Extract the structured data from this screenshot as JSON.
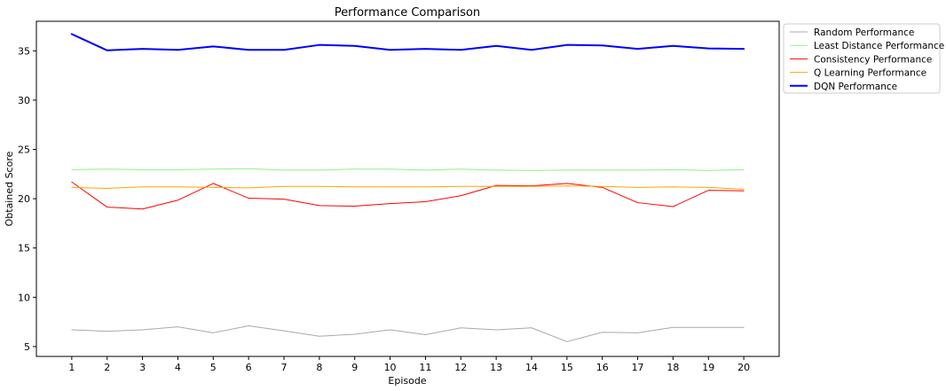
{
  "chart_data": {
    "type": "line",
    "title": "Performance Comparison",
    "xlabel": "Episode",
    "ylabel": "Obtained Score",
    "x": [
      1,
      2,
      3,
      4,
      5,
      6,
      7,
      8,
      9,
      10,
      11,
      12,
      13,
      14,
      15,
      16,
      17,
      18,
      19,
      20
    ],
    "xlim": [
      0,
      21
    ],
    "ylim": [
      4.0,
      38.0
    ],
    "yticks": [
      5,
      10,
      15,
      20,
      25,
      30,
      35
    ],
    "grid": false,
    "legend_position": "outside-top-right",
    "series": [
      {
        "name": "Random Performance",
        "color": "#a9a9a9",
        "linewidth": 1,
        "values": [
          6.7,
          6.55,
          6.7,
          7.0,
          6.4,
          7.1,
          6.6,
          6.05,
          6.25,
          6.7,
          6.2,
          6.9,
          6.7,
          6.9,
          5.5,
          6.45,
          6.4,
          6.95,
          6.95,
          6.95
        ]
      },
      {
        "name": "Least Distance Performance",
        "color": "#90ee90",
        "linewidth": 1,
        "values": [
          22.95,
          23.0,
          22.95,
          22.95,
          23.0,
          23.05,
          22.9,
          22.9,
          23.0,
          23.0,
          22.9,
          23.0,
          22.9,
          22.85,
          22.9,
          22.9,
          22.9,
          22.95,
          22.85,
          22.95
        ]
      },
      {
        "name": "Consistency Performance",
        "color": "#ff0000",
        "linewidth": 1,
        "values": [
          21.7,
          19.15,
          18.95,
          19.85,
          21.55,
          20.05,
          19.95,
          19.3,
          19.25,
          19.5,
          19.7,
          20.3,
          21.35,
          21.3,
          21.55,
          21.15,
          19.6,
          19.2,
          20.85,
          20.8
        ]
      },
      {
        "name": "Q Learning Performance",
        "color": "#ffa500",
        "linewidth": 1,
        "values": [
          21.15,
          21.05,
          21.2,
          21.2,
          21.15,
          21.1,
          21.25,
          21.25,
          21.2,
          21.2,
          21.2,
          21.25,
          21.25,
          21.25,
          21.3,
          21.25,
          21.15,
          21.2,
          21.15,
          20.95
        ]
      },
      {
        "name": "DQN Performance",
        "color": "#0000ff",
        "linewidth": 2,
        "values": [
          36.7,
          35.05,
          35.2,
          35.1,
          35.45,
          35.1,
          35.1,
          35.6,
          35.5,
          35.1,
          35.2,
          35.1,
          35.5,
          35.1,
          35.6,
          35.55,
          35.2,
          35.5,
          35.25,
          35.2
        ]
      }
    ]
  }
}
